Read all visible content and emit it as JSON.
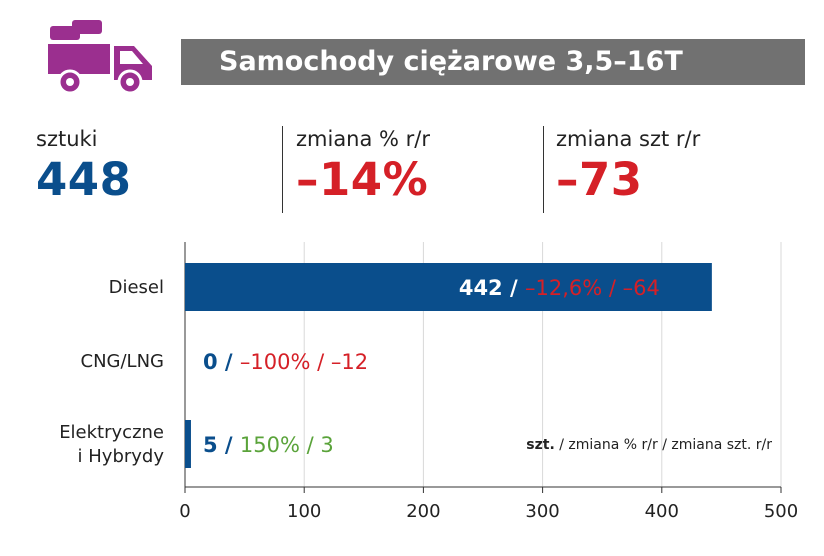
{
  "header": {
    "title": "Samochody ciężarowe 3,5–16T",
    "icon": "truck-icon",
    "icon_color": "#9b2f8f"
  },
  "kpis": [
    {
      "label": "sztuki",
      "value": "448"
    },
    {
      "label": "zmiana % r/r",
      "value": "–14%"
    },
    {
      "label": "zmiana szt r/r",
      "value": "–73"
    }
  ],
  "colors": {
    "bar": "#0a4e8c",
    "negative": "#d52027",
    "positive": "#5aa33a",
    "axis": "#333333"
  },
  "chart_data": {
    "type": "bar",
    "orientation": "horizontal",
    "categories": [
      "Diesel",
      "CNG/LNG",
      "Elektryczne\ni Hybrydy"
    ],
    "values": [
      442,
      0,
      5
    ],
    "xlim": [
      0,
      500
    ],
    "xticks": [
      "0",
      "100",
      "200",
      "300",
      "400",
      "500"
    ],
    "grid": true,
    "bar_labels": [
      {
        "count": "442",
        "sep1": " / ",
        "pct": "–12,6%",
        "sep2": " / ",
        "diff": "–64",
        "trend": "negative"
      },
      {
        "count": "0",
        "sep1": " / ",
        "pct": "–100%",
        "sep2": " / ",
        "diff": "–12",
        "trend": "negative"
      },
      {
        "count": "5",
        "sep1": " / ",
        "pct": "150%",
        "sep2": " / ",
        "diff": "3",
        "trend": "positive"
      }
    ],
    "legend": {
      "bold": "szt.",
      "rest": " / zmiana % r/r / zmiana szt. r/r"
    }
  }
}
